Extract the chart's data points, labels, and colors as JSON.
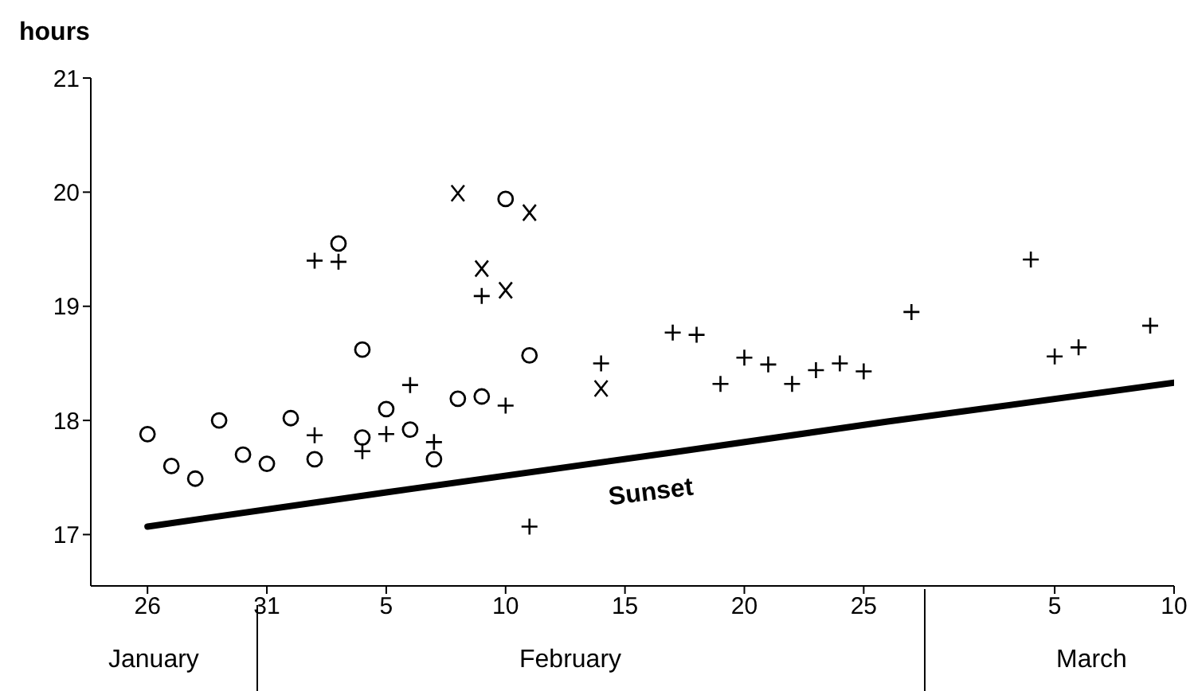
{
  "chart_data": {
    "type": "scatter",
    "ylabel": "hours",
    "xlim": [
      "--01-23T15:00",
      "--03-10"
    ],
    "xticks": [
      {
        "value": "--01-26",
        "label": "26"
      },
      {
        "value": "--01-31",
        "label": "31"
      },
      {
        "value": "--02-05",
        "label": "5"
      },
      {
        "value": "--02-10",
        "label": "10"
      },
      {
        "value": "--02-15",
        "label": "15"
      },
      {
        "value": "--02-20",
        "label": "20"
      },
      {
        "value": "--02-25",
        "label": "25"
      },
      {
        "value": "--03-05",
        "label": "5"
      },
      {
        "value": "--03-10",
        "label": "10"
      }
    ],
    "ylim": [
      16.55,
      21
    ],
    "yticks": [
      17,
      18,
      19,
      20,
      21
    ],
    "grid": false,
    "series": [
      {
        "type": "scatter",
        "marker": "circle",
        "color": "#000000",
        "x": [
          "--01-26",
          "--01-27",
          "--01-28",
          "--01-29",
          "--01-30",
          "--01-31",
          "--02-01",
          "--02-02",
          "--02-03",
          "--02-04",
          "--02-04",
          "--02-05",
          "--02-06",
          "--02-07",
          "--02-08",
          "--02-09",
          "--02-10",
          "--02-11"
        ],
        "values": [
          17.88,
          17.6,
          17.49,
          18.0,
          17.7,
          17.62,
          18.02,
          17.66,
          19.55,
          18.62,
          17.85,
          18.1,
          17.92,
          17.66,
          18.19,
          18.21,
          19.94,
          18.57
        ]
      },
      {
        "type": "scatter",
        "marker": "plus",
        "color": "#000000",
        "x": [
          "--02-02",
          "--02-03",
          "--02-02",
          "--02-04",
          "--02-05",
          "--02-06",
          "--02-07",
          "--02-09",
          "--02-10",
          "--02-11",
          "--02-14",
          "--02-17",
          "--02-18",
          "--02-19",
          "--02-20",
          "--02-21",
          "--02-22",
          "--02-23",
          "--02-24",
          "--02-25",
          "--02-27",
          "--03-04",
          "--03-05",
          "--03-06",
          "--03-09"
        ],
        "values": [
          19.4,
          19.39,
          17.87,
          17.73,
          17.88,
          18.31,
          17.81,
          19.09,
          18.13,
          17.07,
          18.5,
          18.77,
          18.75,
          18.32,
          18.55,
          18.49,
          18.32,
          18.44,
          18.5,
          18.43,
          18.95,
          19.41,
          18.56,
          18.64,
          18.83
        ]
      },
      {
        "type": "scatter",
        "marker": "cross",
        "color": "#000000",
        "x": [
          "--02-08",
          "--02-11",
          "--02-09",
          "--02-10",
          "--02-14"
        ],
        "values": [
          19.99,
          19.82,
          19.33,
          19.14,
          18.28
        ]
      },
      {
        "type": "line",
        "marker": "none",
        "line_style": "solid",
        "color": "#000000",
        "x": [
          "--01-26",
          "--02-05",
          "--02-17",
          "--02-26",
          "--03-10"
        ],
        "values": [
          17.07,
          17.37,
          17.72,
          17.99,
          18.33
        ]
      }
    ],
    "annotations": [
      "Sunset",
      "January",
      "February",
      "March"
    ]
  }
}
